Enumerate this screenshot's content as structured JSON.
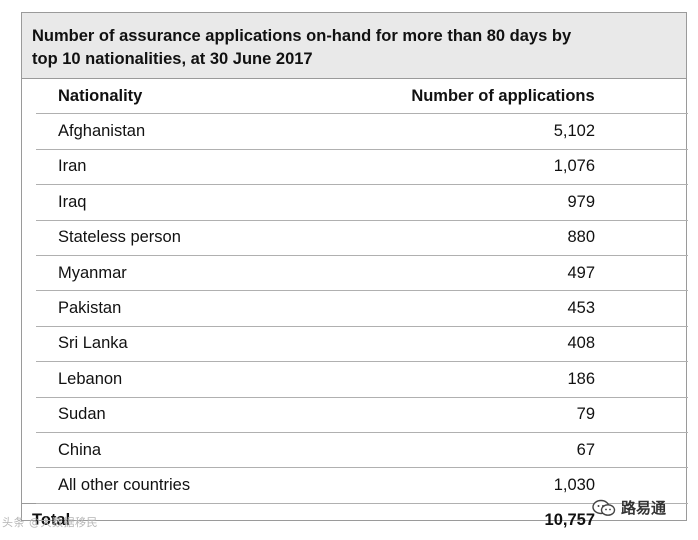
{
  "table": {
    "title_line1": "Number of assurance applications on-hand for more than 80 days by",
    "title_line2": "top 10 nationalities, at 30 June 2017",
    "headers": {
      "nationality": "Nationality",
      "applications": "Number of applications"
    },
    "rows": [
      {
        "nationality": "Afghanistan",
        "applications": "5,102"
      },
      {
        "nationality": "Iran",
        "applications": "1,076"
      },
      {
        "nationality": "Iraq",
        "applications": "979"
      },
      {
        "nationality": "Stateless person",
        "applications": "880"
      },
      {
        "nationality": "Myanmar",
        "applications": "497"
      },
      {
        "nationality": "Pakistan",
        "applications": "453"
      },
      {
        "nationality": "Sri Lanka",
        "applications": "408"
      },
      {
        "nationality": "Lebanon",
        "applications": "186"
      },
      {
        "nationality": "Sudan",
        "applications": "79"
      },
      {
        "nationality": "China",
        "applications": "67"
      },
      {
        "nationality": "All other countries",
        "applications": "1,030"
      }
    ],
    "total": {
      "label": "Total",
      "value": "10,757"
    }
  },
  "watermarks": {
    "left_text": "头条 @大数据移民",
    "right_text": "路易通",
    "right_icon": "wechat-icon"
  }
}
